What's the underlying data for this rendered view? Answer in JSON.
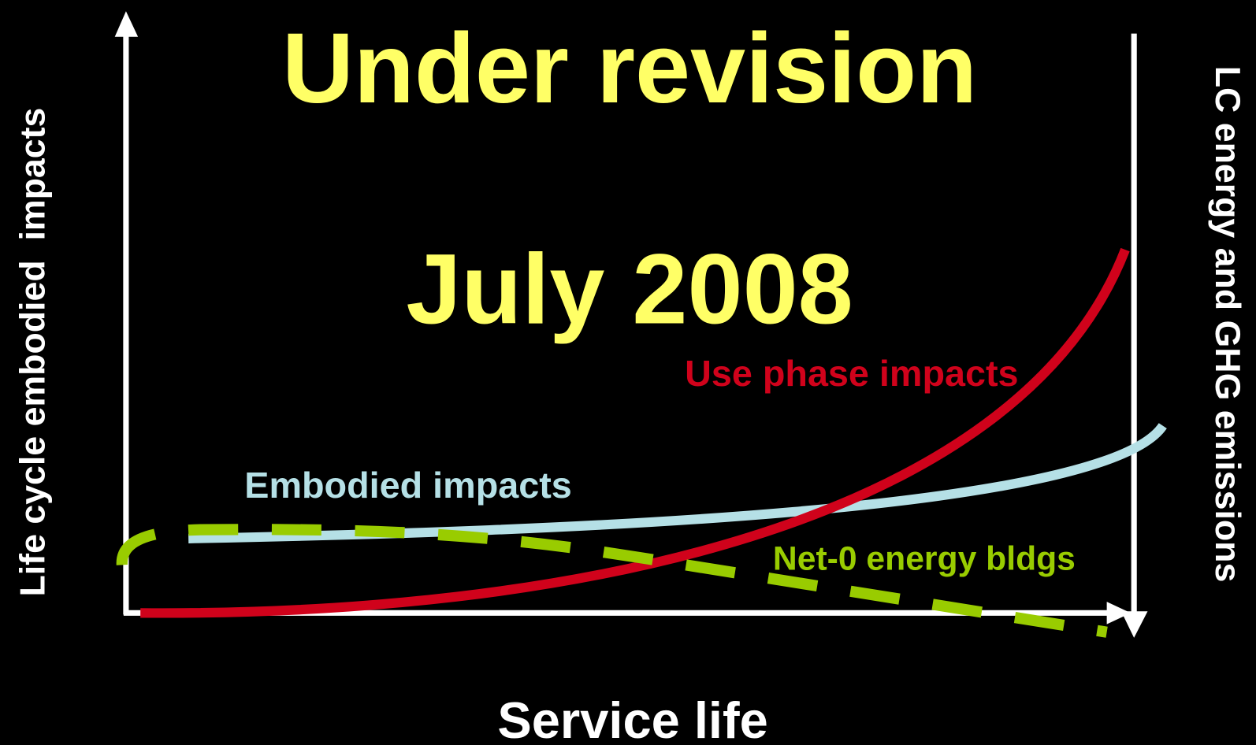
{
  "title": "Under revision",
  "subtitle": "July 2008",
  "curves": [
    {
      "label": "Use phase impacts"
    },
    {
      "label": "Embodied impacts"
    },
    {
      "label": "Net-0 energy bldgs"
    }
  ],
  "axes": {
    "y_left": "Life cycle embodied  impacts",
    "y_right": "LC energy and GHG emissions",
    "x": "Service life"
  }
}
